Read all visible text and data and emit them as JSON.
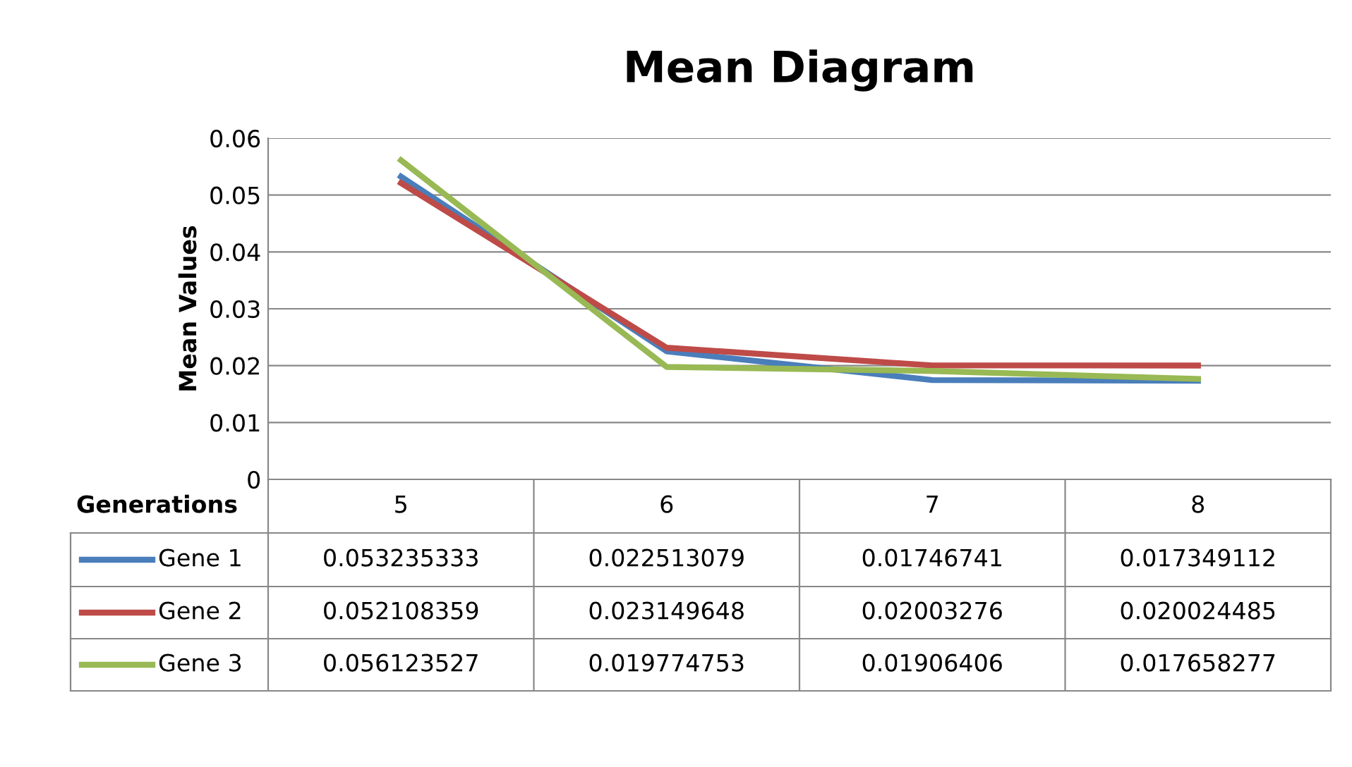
{
  "chart_data": {
    "type": "line",
    "title": "Mean Diagram",
    "xlabel": "Generations",
    "ylabel": "Mean Values",
    "categories": [
      "5",
      "6",
      "7",
      "8"
    ],
    "series": [
      {
        "name": "Gene 1",
        "color": "#4a7ebb",
        "values": [
          0.053235333,
          0.022513079,
          0.01746741,
          0.017349112
        ]
      },
      {
        "name": "Gene 2",
        "color": "#be4b48",
        "values": [
          0.052108359,
          0.023149648,
          0.02003276,
          0.020024485
        ]
      },
      {
        "name": "Gene 3",
        "color": "#98b954",
        "values": [
          0.056123527,
          0.019774753,
          0.01906406,
          0.017658277
        ]
      }
    ],
    "ylim": [
      0,
      0.06
    ],
    "yticks": [
      {
        "value": 0,
        "label": "0"
      },
      {
        "value": 0.01,
        "label": "0.01"
      },
      {
        "value": 0.02,
        "label": "0.02"
      },
      {
        "value": 0.03,
        "label": "0.03"
      },
      {
        "value": 0.04,
        "label": "0.04"
      },
      {
        "value": 0.05,
        "label": "0.05"
      },
      {
        "value": 0.06,
        "label": "0.06"
      }
    ],
    "grid": "y",
    "legend": "bottom",
    "data_labels": true,
    "marker": "none",
    "line_style": "solid"
  }
}
